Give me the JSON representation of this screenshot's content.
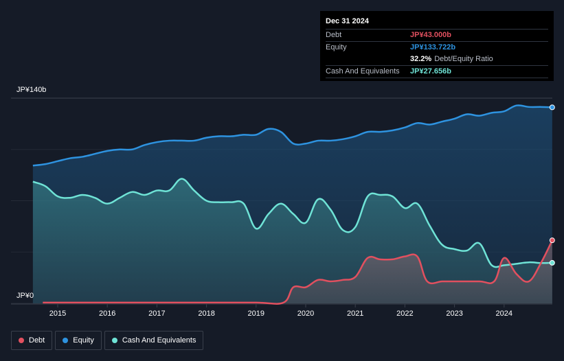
{
  "tooltip": {
    "date": "Dec 31 2024",
    "debt_label": "Debt",
    "debt_value": "JP¥43.000b",
    "equity_label": "Equity",
    "equity_value": "JP¥133.722b",
    "ratio_value": "32.2%",
    "ratio_label": "Debt/Equity Ratio",
    "cash_label": "Cash And Equivalents",
    "cash_value": "JP¥27.656b"
  },
  "legend": {
    "debt": "Debt",
    "equity": "Equity",
    "cash": "Cash And Equivalents"
  },
  "colors": {
    "debt": "#e2505f",
    "equity": "#2e93e0",
    "cash": "#6fe3d6",
    "background": "#151b27"
  },
  "chart_data": {
    "type": "area",
    "y_tick_labels": [
      "JP¥0",
      "JP¥140b"
    ],
    "ylim": [
      0,
      140
    ],
    "x_ticks": [
      2015,
      2016,
      2017,
      2018,
      2019,
      2020,
      2021,
      2022,
      2023,
      2024
    ],
    "grid": true,
    "legend_position": "bottom-left",
    "series": [
      {
        "name": "Equity",
        "color_key": "equity",
        "points": [
          [
            2014.5,
            94
          ],
          [
            2014.75,
            95
          ],
          [
            2015.0,
            97
          ],
          [
            2015.25,
            99
          ],
          [
            2015.5,
            100
          ],
          [
            2015.75,
            102
          ],
          [
            2016.0,
            104
          ],
          [
            2016.25,
            105
          ],
          [
            2016.5,
            105
          ],
          [
            2016.75,
            108
          ],
          [
            2017.0,
            110
          ],
          [
            2017.25,
            111
          ],
          [
            2017.5,
            111
          ],
          [
            2017.75,
            111
          ],
          [
            2018.0,
            113
          ],
          [
            2018.25,
            114
          ],
          [
            2018.5,
            114
          ],
          [
            2018.75,
            115
          ],
          [
            2019.0,
            115
          ],
          [
            2019.25,
            119
          ],
          [
            2019.5,
            117
          ],
          [
            2019.75,
            109
          ],
          [
            2020.0,
            109
          ],
          [
            2020.25,
            111
          ],
          [
            2020.5,
            111
          ],
          [
            2020.75,
            112
          ],
          [
            2021.0,
            114
          ],
          [
            2021.25,
            117
          ],
          [
            2021.5,
            117
          ],
          [
            2021.75,
            118
          ],
          [
            2022.0,
            120
          ],
          [
            2022.25,
            123
          ],
          [
            2022.5,
            122
          ],
          [
            2022.75,
            124
          ],
          [
            2023.0,
            126
          ],
          [
            2023.25,
            129
          ],
          [
            2023.5,
            128
          ],
          [
            2023.75,
            130
          ],
          [
            2024.0,
            131
          ],
          [
            2024.25,
            135
          ],
          [
            2024.5,
            134
          ],
          [
            2024.75,
            134
          ],
          [
            2024.97,
            133.722
          ]
        ]
      },
      {
        "name": "Cash And Equivalents",
        "color_key": "cash",
        "points": [
          [
            2014.5,
            83
          ],
          [
            2014.75,
            80
          ],
          [
            2015.0,
            73
          ],
          [
            2015.25,
            72
          ],
          [
            2015.5,
            74
          ],
          [
            2015.75,
            72
          ],
          [
            2016.0,
            68
          ],
          [
            2016.25,
            72
          ],
          [
            2016.5,
            76
          ],
          [
            2016.75,
            74
          ],
          [
            2017.0,
            77
          ],
          [
            2017.25,
            77
          ],
          [
            2017.5,
            85
          ],
          [
            2017.75,
            77
          ],
          [
            2018.0,
            70
          ],
          [
            2018.25,
            69
          ],
          [
            2018.5,
            69
          ],
          [
            2018.75,
            68
          ],
          [
            2019.0,
            51
          ],
          [
            2019.25,
            61
          ],
          [
            2019.5,
            68
          ],
          [
            2019.75,
            61
          ],
          [
            2020.0,
            55
          ],
          [
            2020.25,
            71
          ],
          [
            2020.5,
            64
          ],
          [
            2020.75,
            50
          ],
          [
            2021.0,
            52
          ],
          [
            2021.25,
            73
          ],
          [
            2021.5,
            74
          ],
          [
            2021.75,
            73
          ],
          [
            2022.0,
            65
          ],
          [
            2022.25,
            68
          ],
          [
            2022.5,
            53
          ],
          [
            2022.75,
            40
          ],
          [
            2023.0,
            37
          ],
          [
            2023.25,
            36
          ],
          [
            2023.5,
            41
          ],
          [
            2023.75,
            26
          ],
          [
            2024.0,
            26
          ],
          [
            2024.25,
            27
          ],
          [
            2024.5,
            28
          ],
          [
            2024.75,
            27.5
          ],
          [
            2024.97,
            27.656
          ]
        ]
      },
      {
        "name": "Debt",
        "color_key": "debt",
        "points": [
          [
            2014.7,
            0.5
          ],
          [
            2015.0,
            0.5
          ],
          [
            2016.0,
            0.5
          ],
          [
            2017.0,
            0.5
          ],
          [
            2018.0,
            0.5
          ],
          [
            2019.0,
            0.5
          ],
          [
            2019.55,
            0.5
          ],
          [
            2019.75,
            11
          ],
          [
            2020.0,
            11
          ],
          [
            2020.25,
            16
          ],
          [
            2020.5,
            15
          ],
          [
            2020.75,
            16
          ],
          [
            2021.0,
            18
          ],
          [
            2021.25,
            31
          ],
          [
            2021.5,
            30
          ],
          [
            2021.75,
            30
          ],
          [
            2022.0,
            32
          ],
          [
            2022.25,
            32
          ],
          [
            2022.45,
            15
          ],
          [
            2022.75,
            15
          ],
          [
            2023.0,
            15
          ],
          [
            2023.5,
            15
          ],
          [
            2023.8,
            15
          ],
          [
            2024.0,
            31
          ],
          [
            2024.25,
            20
          ],
          [
            2024.5,
            15
          ],
          [
            2024.75,
            28
          ],
          [
            2024.97,
            43.0
          ]
        ]
      }
    ]
  }
}
